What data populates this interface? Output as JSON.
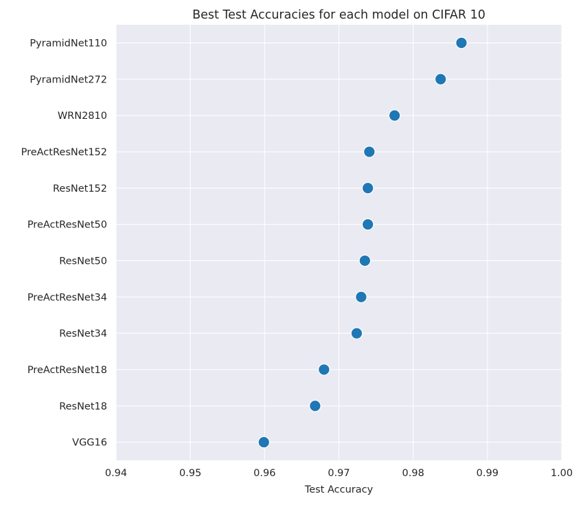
{
  "chart_data": {
    "type": "scatter",
    "title": "Best Test Accuracies for each model on CIFAR 10",
    "xlabel": "Test Accuracy",
    "ylabel": "",
    "xlim": [
      0.94,
      1.0
    ],
    "xticks": [
      "0.94",
      "0.95",
      "0.96",
      "0.97",
      "0.98",
      "0.99",
      "1.00"
    ],
    "grid": true,
    "categories": [
      "PyramidNet110",
      "PyramidNet272",
      "WRN2810",
      "PreActResNet152",
      "ResNet152",
      "PreActResNet50",
      "ResNet50",
      "PreActResNet34",
      "ResNet34",
      "PreActResNet18",
      "ResNet18",
      "VGG16"
    ],
    "values": [
      0.9865,
      0.9837,
      0.9775,
      0.9741,
      0.9739,
      0.9739,
      0.9735,
      0.973,
      0.9724,
      0.968,
      0.9668,
      0.9599
    ],
    "colors": {
      "background": "#eaeaf2",
      "grid": "#ffffff",
      "marker": "#1f77b4",
      "marker_edge": "#ffffff",
      "text": "#262626"
    }
  }
}
